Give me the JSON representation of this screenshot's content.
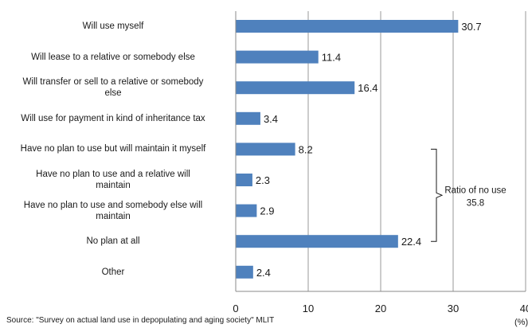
{
  "chart_data": {
    "type": "bar",
    "orientation": "horizontal",
    "categories": [
      "Will use myself",
      "Will lease to a relative or somebody else",
      "Will transfer or sell to a relative or somebody else",
      "Will use for payment in kind of inheritance tax",
      "Have no plan to use but will maintain it myself",
      "Have no plan to use and a relative will maintain",
      "Have no plan to use and somebody else will maintain",
      "No plan at all",
      "Other"
    ],
    "category_lines": [
      [
        "Will use myself"
      ],
      [
        "Will lease to a relative or somebody else"
      ],
      [
        "Will transfer  or sell to a relative or somebody",
        "else"
      ],
      [
        "Will use for payment in kind of inheritance tax"
      ],
      [
        "Have no plan to use but will maintain it myself"
      ],
      [
        "Have no plan to use and a relative will",
        "maintain"
      ],
      [
        "Have no plan to use and somebody else will",
        "maintain"
      ],
      [
        "No plan at all"
      ],
      [
        "Other"
      ]
    ],
    "values": [
      30.7,
      11.4,
      16.4,
      3.4,
      8.2,
      2.3,
      2.9,
      22.4,
      2.4
    ],
    "value_labels": [
      "30.7",
      "11.4",
      "16.4",
      "3.4",
      "8.2",
      "2.3",
      "2.9",
      "22.4",
      "2.4"
    ],
    "xlim": [
      0,
      40
    ],
    "xticks": [
      0,
      10,
      20,
      30,
      40
    ],
    "xtick_labels": [
      "0",
      "10",
      "20",
      "30",
      "40"
    ],
    "x_unit": "(%)",
    "grid": true,
    "bar_color": "#4f81bd",
    "annotation": {
      "text_lines": [
        "Ratio of no use",
        "35.8"
      ],
      "brackets_categories": [
        "Have no plan to use but will maintain it myself",
        "No plan at all"
      ]
    }
  },
  "source": "Source: \"Survey on actual land use in depopulating and aging society\" MLIT"
}
